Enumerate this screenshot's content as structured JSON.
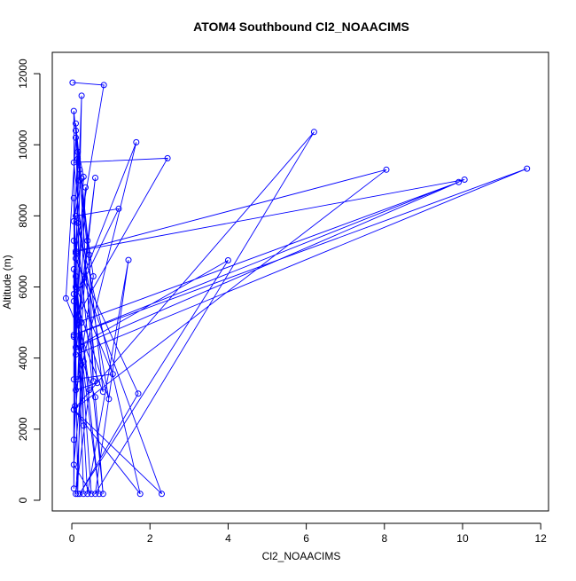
{
  "chart_data": {
    "type": "line",
    "title": "ATOM4 Southbound Cl2_NOAACIMS",
    "xlabel": "Cl2_NOAACIMS",
    "ylabel": "Altitude (m)",
    "xlim": [
      -0.5,
      12.2
    ],
    "ylim": [
      -300,
      12600
    ],
    "x_ticks": [
      0,
      2,
      4,
      6,
      8,
      10,
      12
    ],
    "y_ticks": [
      0,
      2000,
      4000,
      6000,
      8000,
      10000,
      12000
    ],
    "x_tick_labels": [
      "0",
      "2",
      "4",
      "6",
      "8",
      "10",
      "12"
    ],
    "y_tick_labels": [
      "0",
      "2000",
      "4000",
      "6000",
      "8000",
      "10000",
      "12000"
    ],
    "line_color": "#0000ff",
    "marker": "open-circle",
    "grid": false,
    "series": [
      {
        "points": [
          [
            0.02,
            11750
          ],
          [
            0.82,
            11680
          ],
          [
            0.1,
            6950
          ],
          [
            0.25,
            11380
          ],
          [
            0.08,
            2650
          ],
          [
            0.05,
            10950
          ],
          [
            0.15,
            9800
          ],
          [
            0.05,
            7300
          ],
          [
            0.3,
            2100
          ],
          [
            0.1,
            10400
          ],
          [
            0.2,
            9000
          ],
          [
            0.55,
            6300
          ],
          [
            0.15,
            3400
          ],
          [
            0.35,
            8800
          ],
          [
            0.05,
            4600
          ],
          [
            0.6,
            2900
          ],
          [
            0.8,
            180
          ],
          [
            0.1,
            8000
          ],
          [
            1.2,
            8200
          ],
          [
            0.05,
            5600
          ],
          [
            1.65,
            10070
          ],
          [
            0.1,
            3100
          ],
          [
            0.65,
            3300
          ],
          [
            0.05,
            9500
          ],
          [
            2.45,
            9620
          ],
          [
            0.15,
            5200
          ],
          [
            0.4,
            180
          ],
          [
            1.45,
            6760
          ],
          [
            0.6,
            180
          ],
          [
            6.2,
            10360
          ],
          [
            0.05,
            2550
          ],
          [
            8.05,
            9300
          ],
          [
            0.1,
            7000
          ],
          [
            10.05,
            9020
          ],
          [
            0.05,
            4650
          ],
          [
            11.65,
            9330
          ],
          [
            0.1,
            4100
          ],
          [
            0.6,
            9070
          ],
          [
            0.15,
            5000
          ],
          [
            9.9,
            8950
          ],
          [
            0.1,
            4300
          ],
          [
            4.0,
            6750
          ],
          [
            0.2,
            180
          ],
          [
            1.7,
            3000
          ],
          [
            0.1,
            6800
          ],
          [
            2.3,
            180
          ],
          [
            0.05,
            2550
          ],
          [
            1.75,
            180
          ],
          [
            0.15,
            7800
          ],
          [
            0.95,
            2850
          ],
          [
            0.05,
            5800
          ],
          [
            0.7,
            180
          ],
          [
            0.1,
            6300
          ],
          [
            0.5,
            180
          ],
          [
            0.05,
            1000
          ],
          [
            0.3,
            3900
          ],
          [
            0.1,
            180
          ],
          [
            0.45,
            3100
          ],
          [
            0.05,
            6500
          ],
          [
            0.05,
            330
          ],
          [
            0.15,
            9600
          ],
          [
            0.8,
            3050
          ],
          [
            -0.15,
            5680
          ],
          [
            0.1,
            10200
          ],
          [
            0.3,
            9100
          ],
          [
            0.05,
            3400
          ],
          [
            1.05,
            3550
          ],
          [
            0.1,
            6000
          ],
          [
            0.05,
            7850
          ],
          [
            0.25,
            9050
          ],
          [
            0.45,
            6900
          ],
          [
            0.55,
            3350
          ],
          [
            0.2,
            9300
          ],
          [
            0.1,
            10600
          ],
          [
            0.4,
            7300
          ],
          [
            0.05,
            1700
          ],
          [
            0.25,
            5000
          ],
          [
            0.15,
            180
          ],
          [
            0.05,
            8500
          ],
          [
            0.3,
            180
          ]
        ]
      }
    ]
  }
}
